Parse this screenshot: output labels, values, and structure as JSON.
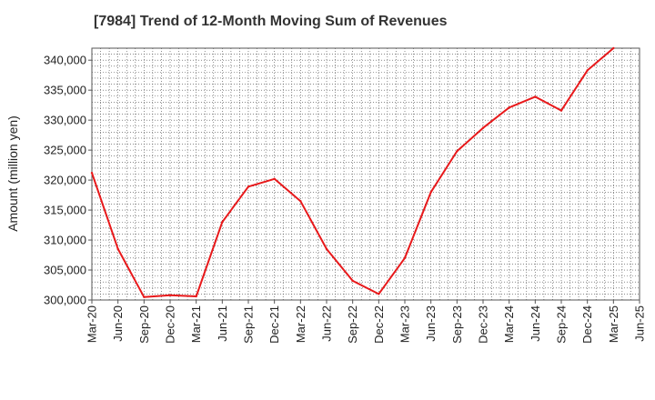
{
  "colors": {
    "line": "#e8191b",
    "grid": "#444444",
    "frame": "#555555"
  },
  "chart_data": {
    "type": "line",
    "title": "[7984]  Trend of 12-Month Moving Sum of Revenues",
    "xlabel": "",
    "ylabel": "Amount (million yen)",
    "ylim": [
      300000,
      342000
    ],
    "y_ticks": [
      300000,
      305000,
      310000,
      315000,
      320000,
      325000,
      330000,
      335000,
      340000
    ],
    "y_tick_labels": [
      "300,000",
      "305,000",
      "310,000",
      "315,000",
      "320,000",
      "325,000",
      "330,000",
      "335,000",
      "340,000"
    ],
    "x_ticks": [
      "Mar-20",
      "Jun-20",
      "Sep-20",
      "Dec-20",
      "Mar-21",
      "Jun-21",
      "Sep-21",
      "Dec-21",
      "Mar-22",
      "Jun-22",
      "Sep-22",
      "Dec-22",
      "Mar-23",
      "Jun-23",
      "Sep-23",
      "Dec-23",
      "Mar-24",
      "Jun-24",
      "Sep-24",
      "Dec-24",
      "Mar-25",
      "Jun-25"
    ],
    "grid": true,
    "legend": "none",
    "series": [
      {
        "x": [
          "Mar-20",
          "Jun-20",
          "Sep-20",
          "Dec-20",
          "Mar-21",
          "Jun-21",
          "Sep-21",
          "Dec-21",
          "Mar-22",
          "Jun-22",
          "Sep-22",
          "Dec-22",
          "Mar-23",
          "Jun-23",
          "Sep-23",
          "Dec-23",
          "Mar-24",
          "Jun-24",
          "Sep-24",
          "Dec-24",
          "Mar-25"
        ],
        "values": [
          321200,
          308500,
          300500,
          300800,
          300600,
          313000,
          318900,
          320200,
          316500,
          308500,
          303200,
          301000,
          307000,
          318000,
          324800,
          328700,
          332100,
          333900,
          331600,
          338300,
          342000
        ]
      }
    ]
  }
}
